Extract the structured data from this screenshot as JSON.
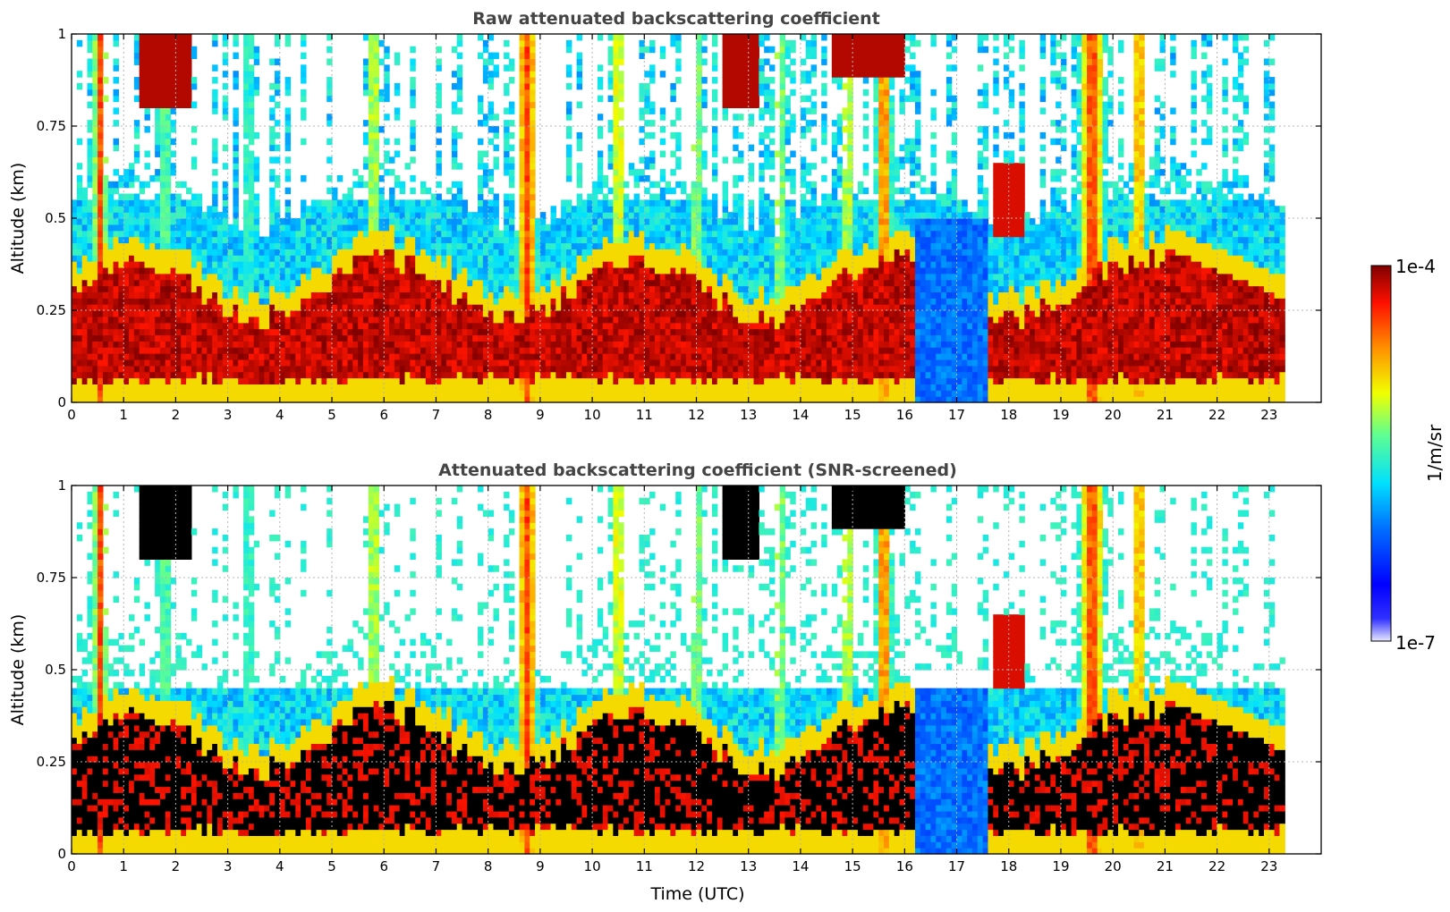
{
  "chart_data": [
    {
      "id": "raw",
      "type": "heatmap",
      "title": "Raw attenuated backscattering coefficient",
      "xlabel": "",
      "ylabel": "Altitude (km)",
      "xlim": [
        0,
        24
      ],
      "ylim": [
        0,
        1
      ],
      "x_ticks": [
        "0",
        "1",
        "2",
        "3",
        "4",
        "5",
        "6",
        "7",
        "8",
        "9",
        "10",
        "11",
        "12",
        "13",
        "14",
        "15",
        "16",
        "17",
        "18",
        "19",
        "20",
        "21",
        "22",
        "23"
      ],
      "y_ticks": [
        "0",
        "0.25",
        "0.5",
        "0.75",
        "1"
      ],
      "grid": true,
      "data_end_hour": 23.3,
      "screened": false,
      "layers": [
        {
          "description": "boundary layer aerosol (dark red)",
          "x": [
            0,
            1.3
          ],
          "base_km": 0.1,
          "top_km": 0.36,
          "level": 0.95
        },
        {
          "description": "low cloud",
          "x": [
            1.3,
            2.3
          ],
          "base_km": 0.75,
          "top_km": 1.0,
          "level": 0.93
        },
        {
          "description": "fog/precip column",
          "x": [
            8.5,
            9.0
          ],
          "base_km": 0.0,
          "top_km": 1.0,
          "level": 0.8
        },
        {
          "description": "boundary layer aerosol",
          "x": [
            2.3,
            13.2
          ],
          "base_km": 0.08,
          "top_km": 0.35,
          "level": 0.95
        },
        {
          "description": "cloud near top",
          "x": [
            14.6,
            16.0
          ],
          "base_km": 0.85,
          "top_km": 1.0,
          "level": 0.95
        },
        {
          "description": "clear with noise",
          "x": [
            16.2,
            17.6
          ],
          "base_km": 0.0,
          "top_km": 0.5,
          "level": 0.3
        },
        {
          "description": "boundary layer aerosol",
          "x": [
            17.7,
            23.3
          ],
          "base_km": 0.05,
          "top_km": 0.3,
          "level": 0.95
        },
        {
          "description": "thick aerosol column",
          "x": [
            19.3,
            20.6
          ],
          "base_km": 0.0,
          "top_km": 1.0,
          "level": 0.78
        }
      ]
    },
    {
      "id": "screened",
      "type": "heatmap",
      "title": "Attenuated backscattering coefficient (SNR-screened)",
      "xlabel": "Time (UTC)",
      "ylabel": "Altitude (km)",
      "xlim": [
        0,
        24
      ],
      "ylim": [
        0,
        1
      ],
      "x_ticks": [
        "0",
        "1",
        "2",
        "3",
        "4",
        "5",
        "6",
        "7",
        "8",
        "9",
        "10",
        "11",
        "12",
        "13",
        "14",
        "15",
        "16",
        "17",
        "18",
        "19",
        "20",
        "21",
        "22",
        "23"
      ],
      "y_ticks": [
        "0",
        "0.25",
        "0.5",
        "0.75",
        "1"
      ],
      "grid": true,
      "data_end_hour": 23.3,
      "screened": true,
      "saturated_color": "#000000"
    }
  ],
  "colorbar": {
    "label": "1/m/sr",
    "max_label": "1e-4",
    "min_label": "1e-7",
    "scale": "log",
    "range": [
      1e-07,
      0.0001
    ],
    "colormap": "jet"
  }
}
